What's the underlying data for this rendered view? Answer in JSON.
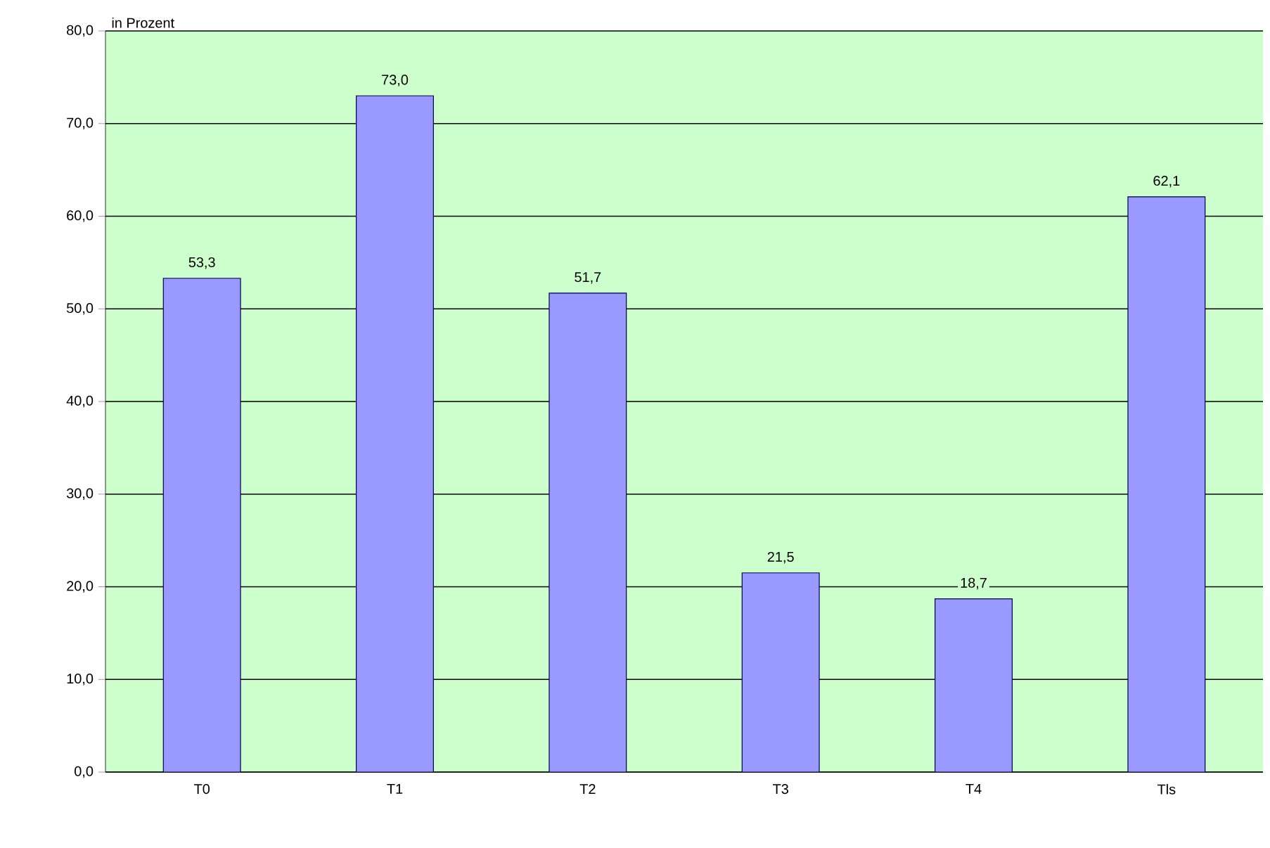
{
  "chart_data": {
    "type": "bar",
    "ylabel": "in Prozent",
    "categories": [
      "T0",
      "T1",
      "T2",
      "T3",
      "T4",
      "Tls"
    ],
    "values": [
      53.3,
      73.0,
      51.7,
      21.5,
      18.7,
      62.1
    ],
    "value_labels": [
      "53,3",
      "73,0",
      "51,7",
      "21,5",
      "18,7",
      "62,1"
    ],
    "color": "#9999ff",
    "ylim": [
      0,
      80
    ],
    "yticks": [
      {
        "value": 0,
        "label": "0,0"
      },
      {
        "value": 10,
        "label": "10,0"
      },
      {
        "value": 20,
        "label": "20,0"
      },
      {
        "value": 30,
        "label": "30,0"
      },
      {
        "value": 40,
        "label": "40,0"
      },
      {
        "value": 50,
        "label": "50,0"
      },
      {
        "value": 60,
        "label": "60,0"
      },
      {
        "value": 70,
        "label": "70,0"
      },
      {
        "value": 80,
        "label": "80,0"
      }
    ],
    "grid": "y"
  }
}
